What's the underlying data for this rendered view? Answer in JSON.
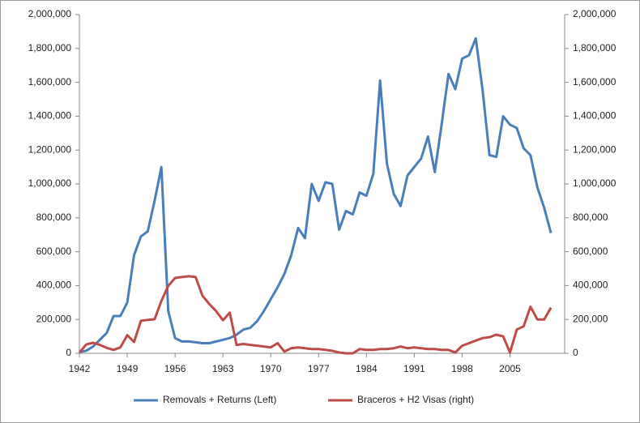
{
  "chart_data": {
    "type": "line",
    "x": [
      1942,
      1943,
      1944,
      1945,
      1946,
      1947,
      1948,
      1949,
      1950,
      1951,
      1952,
      1953,
      1954,
      1955,
      1956,
      1957,
      1958,
      1959,
      1960,
      1961,
      1962,
      1963,
      1964,
      1965,
      1966,
      1967,
      1968,
      1969,
      1970,
      1971,
      1972,
      1973,
      1974,
      1975,
      1976,
      1977,
      1978,
      1979,
      1980,
      1981,
      1982,
      1983,
      1984,
      1985,
      1986,
      1987,
      1988,
      1989,
      1990,
      1991,
      1992,
      1993,
      1994,
      1995,
      1996,
      1997,
      1998,
      1999,
      2000,
      2001,
      2002,
      2003,
      2004,
      2005,
      2006,
      2007,
      2008,
      2009,
      2010,
      2011
    ],
    "series": [
      {
        "name": "Removals + Returns (Left)",
        "color": "#4a7ebb",
        "axis": "y",
        "values": [
          8000,
          15000,
          40000,
          80000,
          120000,
          220000,
          220000,
          300000,
          580000,
          690000,
          720000,
          900000,
          1100000,
          250000,
          90000,
          70000,
          70000,
          65000,
          60000,
          60000,
          70000,
          80000,
          90000,
          110000,
          140000,
          150000,
          190000,
          250000,
          320000,
          390000,
          470000,
          580000,
          740000,
          680000,
          1000000,
          900000,
          1010000,
          1000000,
          730000,
          840000,
          820000,
          950000,
          930000,
          1060000,
          1610000,
          1120000,
          940000,
          870000,
          1050000,
          1100000,
          1150000,
          1280000,
          1070000,
          1350000,
          1650000,
          1560000,
          1740000,
          1760000,
          1860000,
          1550000,
          1170000,
          1160000,
          1400000,
          1350000,
          1330000,
          1210000,
          1170000,
          980000,
          860000,
          710000
        ]
      },
      {
        "name": "Braceros + H2 Visas (right)",
        "color": "#be4b48",
        "axis": "y2",
        "values": [
          4000,
          52000,
          62000,
          50000,
          32000,
          20000,
          35000,
          107000,
          67000,
          192000,
          197000,
          201000,
          309000,
          398000,
          445000,
          450000,
          455000,
          450000,
          340000,
          291000,
          250000,
          195000,
          240000,
          50000,
          55000,
          50000,
          45000,
          40000,
          35000,
          60000,
          10000,
          30000,
          35000,
          30000,
          25000,
          25000,
          20000,
          15000,
          5000,
          0,
          0,
          25000,
          20000,
          20000,
          25000,
          25000,
          30000,
          40000,
          30000,
          35000,
          30000,
          25000,
          25000,
          20000,
          20000,
          5000,
          45000,
          60000,
          75000,
          90000,
          95000,
          110000,
          100000,
          5000,
          140000,
          160000,
          275000,
          200000,
          200000,
          270000
        ]
      }
    ],
    "xlim": [
      1942,
      2013
    ],
    "xticks": [
      1942,
      1949,
      1956,
      1963,
      1970,
      1977,
      1984,
      1991,
      1998,
      2005
    ],
    "ylim": [
      0,
      2000000
    ],
    "yticks": [
      0,
      {
        "value": 200000,
        "label": "200,000"
      },
      {
        "value": 400000,
        "label": "400,000"
      },
      {
        "value": 600000,
        "label": "600,000"
      },
      {
        "value": 800000,
        "label": "800,000"
      },
      {
        "value": 1000000,
        "label": "1,000,000"
      },
      {
        "value": 1200000,
        "label": "1,200,000"
      },
      {
        "value": 1400000,
        "label": "1,400,000"
      },
      {
        "value": 1600000,
        "label": "1,600,000"
      },
      {
        "value": 1800000,
        "label": "1,800,000"
      },
      {
        "value": 2000000,
        "label": "2,000,000"
      }
    ],
    "y2lim": [
      0,
      2000000
    ],
    "y2ticks": [
      0,
      {
        "value": 200000,
        "label": "200,000"
      },
      {
        "value": 400000,
        "label": "400,000"
      },
      {
        "value": 600000,
        "label": "600,000"
      },
      {
        "value": 800000,
        "label": "800,000"
      },
      {
        "value": 1000000,
        "label": "1,000,000"
      },
      {
        "value": 1200000,
        "label": "1,200,000"
      },
      {
        "value": 1400000,
        "label": "1,400,000"
      },
      {
        "value": 1600000,
        "label": "1,600,000"
      },
      {
        "value": 1800000,
        "label": "1,800,000"
      },
      {
        "value": 2000000,
        "label": "2,000,000"
      }
    ],
    "legend": "bottom"
  }
}
